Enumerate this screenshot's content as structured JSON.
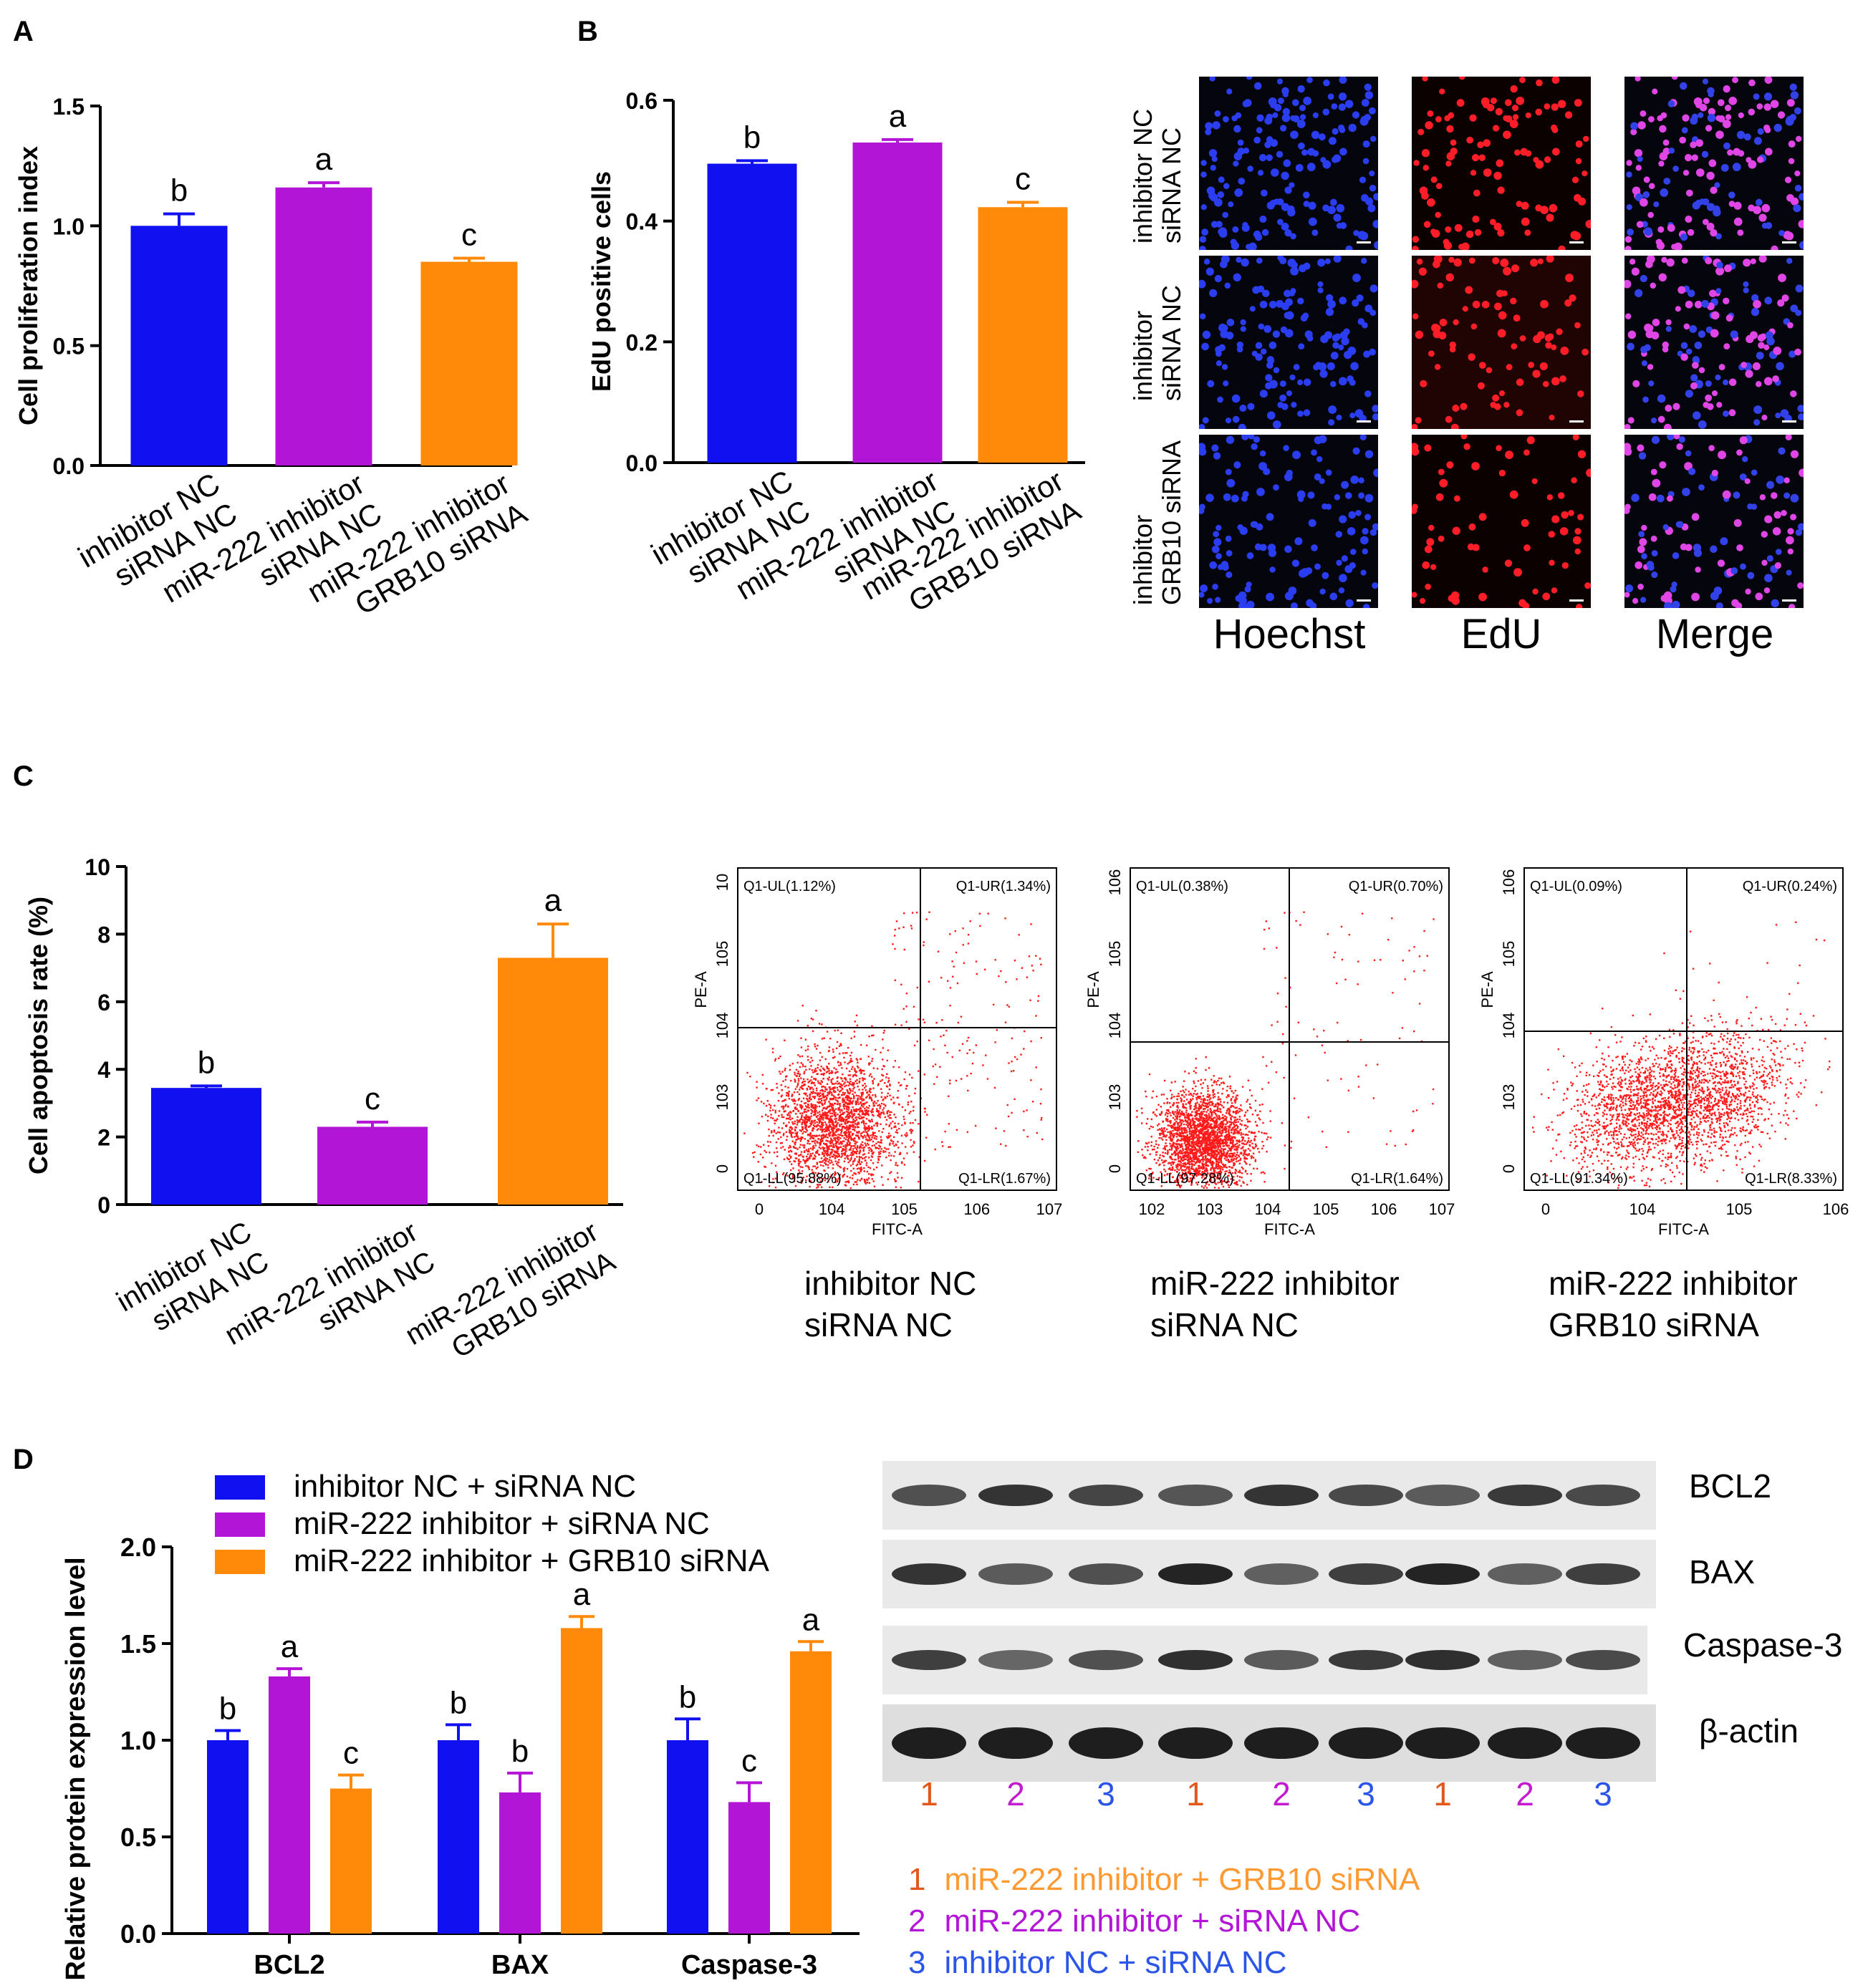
{
  "panels": {
    "A": "A",
    "B": "B",
    "C": "C",
    "D": "D"
  },
  "colors": {
    "blue": "#1010f0",
    "purple": "#b215d6",
    "orange": "#ff8a0a",
    "dot": "#ff1a1a"
  },
  "chart_data": [
    {
      "id": "A",
      "type": "bar",
      "ylabel": "Cell proliferation index",
      "categories": [
        "inhibitor NC siRNA NC",
        "miR-222 inhibitor siRNA NC",
        "miR-222 inhibitor GRB10 siRNA"
      ],
      "cat_lines": [
        [
          "inhibitor NC",
          "siRNA NC"
        ],
        [
          "miR-222 inhibitor",
          "siRNA NC"
        ],
        [
          "miR-222 inhibitor",
          "GRB10 siRNA"
        ]
      ],
      "values": [
        1.0,
        1.16,
        0.85
      ],
      "errors": [
        0.05,
        0.02,
        0.015
      ],
      "letters": [
        "b",
        "a",
        "c"
      ],
      "ylim": [
        0,
        1.5
      ],
      "ticks": [
        0.0,
        0.5,
        1.0,
        1.5
      ],
      "tick_labels": [
        "0.0",
        "0.5",
        "1.0",
        "1.5"
      ]
    },
    {
      "id": "B",
      "type": "bar",
      "ylabel": "EdU positive cells",
      "categories": [
        "inhibitor NC siRNA NC",
        "miR-222 inhibitor siRNA NC",
        "miR-222 inhibitor GRB10 siRNA"
      ],
      "cat_lines": [
        [
          "inhibitor NC",
          "siRNA NC"
        ],
        [
          "miR-222 inhibitor",
          "siRNA NC"
        ],
        [
          "miR-222 inhibitor",
          "GRB10 siRNA"
        ]
      ],
      "values": [
        0.495,
        0.53,
        0.423
      ],
      "errors": [
        0.005,
        0.005,
        0.008
      ],
      "letters": [
        "b",
        "a",
        "c"
      ],
      "ylim": [
        0,
        0.6
      ],
      "ticks": [
        0.0,
        0.2,
        0.4,
        0.6
      ],
      "tick_labels": [
        "0.0",
        "0.2",
        "0.4",
        "0.6"
      ]
    },
    {
      "id": "C",
      "type": "bar",
      "ylabel": "Cell apoptosis rate (%)",
      "categories": [
        "inhibitor NC siRNA NC",
        "miR-222 inhibitor siRNA NC",
        "miR-222 inhibitor GRB10 siRNA"
      ],
      "cat_lines": [
        [
          "inhibitor NC",
          "siRNA NC"
        ],
        [
          "miR-222 inhibitor",
          "siRNA NC"
        ],
        [
          "miR-222 inhibitor",
          "GRB10 siRNA"
        ]
      ],
      "values": [
        3.45,
        2.3,
        7.3
      ],
      "errors": [
        0.06,
        0.14,
        1.0
      ],
      "letters": [
        "b",
        "c",
        "a"
      ],
      "ylim": [
        0,
        10
      ],
      "ticks": [
        0,
        2,
        4,
        6,
        8,
        10
      ],
      "tick_labels": [
        "0",
        "2",
        "4",
        "6",
        "8",
        "10"
      ]
    },
    {
      "id": "D",
      "type": "bar",
      "ylabel": "Relative protein expression level",
      "categories": [
        "BCL2",
        "BAX",
        "Caspase-3"
      ],
      "series": [
        {
          "name": "inhibitor NC + siRNA NC",
          "values": [
            1.0,
            1.0,
            1.0
          ],
          "errors": [
            0.05,
            0.08,
            0.11
          ],
          "letters": [
            "b",
            "b",
            "b"
          ]
        },
        {
          "name": "miR-222 inhibitor + siRNA NC",
          "values": [
            1.33,
            0.73,
            0.68
          ],
          "errors": [
            0.04,
            0.1,
            0.1
          ],
          "letters": [
            "a",
            "b",
            "c"
          ]
        },
        {
          "name": "miR-222 inhibitor + GRB10 siRNA",
          "values": [
            0.75,
            1.58,
            1.46
          ],
          "errors": [
            0.07,
            0.06,
            0.05
          ],
          "letters": [
            "c",
            "a",
            "a"
          ]
        }
      ],
      "ylim": [
        0,
        2.0
      ],
      "ticks": [
        0.0,
        0.5,
        1.0,
        1.5,
        2.0
      ],
      "tick_labels": [
        "0.0",
        "0.5",
        "1.0",
        "1.5",
        "2.0"
      ]
    },
    {
      "id": "C-flow",
      "type": "scatter",
      "plots": [
        {
          "UL": "Q1-UL(1.12%)",
          "UR": "Q1-UR(1.34%)",
          "LL": "Q1-LL(95.88%)",
          "LR": "Q1-LR(1.67%)",
          "xlabel": "FITC-A",
          "ylabel": "PE-A",
          "xticks": [
            "0",
            "10^4",
            "10^5",
            "10^6",
            "10^7"
          ],
          "yticks": [
            "0",
            "10^3",
            "10^4",
            "10^5",
            "10"
          ],
          "caption": [
            "inhibitor NC",
            "siRNA NC"
          ]
        },
        {
          "UL": "Q1-UL(0.38%)",
          "UR": "Q1-UR(0.70%)",
          "LL": "Q1-LL(97.28%)",
          "LR": "Q1-LR(1.64%)",
          "xlabel": "FITC-A",
          "ylabel": "PE-A",
          "xticks": [
            "10^2",
            "10^3",
            "10^4",
            "10^5",
            "10^6",
            "10^7"
          ],
          "yticks": [
            "0",
            "10^3",
            "10^4",
            "10^5",
            "10^6"
          ],
          "caption": [
            "miR-222 inhibitor",
            "siRNA NC"
          ]
        },
        {
          "UL": "Q1-UL(0.09%)",
          "UR": "Q1-UR(0.24%)",
          "LL": "Q1-LL(91.34%)",
          "LR": "Q1-LR(8.33%)",
          "xlabel": "FITC-A",
          "ylabel": "PE-A",
          "xticks": [
            "0",
            "10^4",
            "10^5",
            "10^6"
          ],
          "yticks": [
            "0",
            "10^3",
            "10^4",
            "10^5",
            "10^6"
          ],
          "caption": [
            "miR-222 inhibitor",
            "GRB10 siRNA"
          ]
        }
      ]
    }
  ],
  "microscopy": {
    "columns": [
      "Hoechst",
      "EdU",
      "Merge"
    ],
    "rows": [
      [
        "inhibitor NC",
        "siRNA NC"
      ],
      [
        "inhibitor",
        "siRNA NC"
      ],
      [
        "inhibitor",
        "GRB10 siRNA"
      ]
    ]
  },
  "western": {
    "proteins": [
      "BCL2",
      "BAX",
      "Caspase-3",
      "β-actin"
    ],
    "lanes": [
      "1",
      "2",
      "3",
      "1",
      "2",
      "3",
      "1",
      "2",
      "3"
    ],
    "legend": [
      {
        "num": "1",
        "text": "miR-222 inhibitor + GRB10 siRNA"
      },
      {
        "num": "2",
        "text": "miR-222 inhibitor + siRNA NC"
      },
      {
        "num": "3",
        "text": "inhibitor NC + siRNA NC"
      }
    ]
  }
}
